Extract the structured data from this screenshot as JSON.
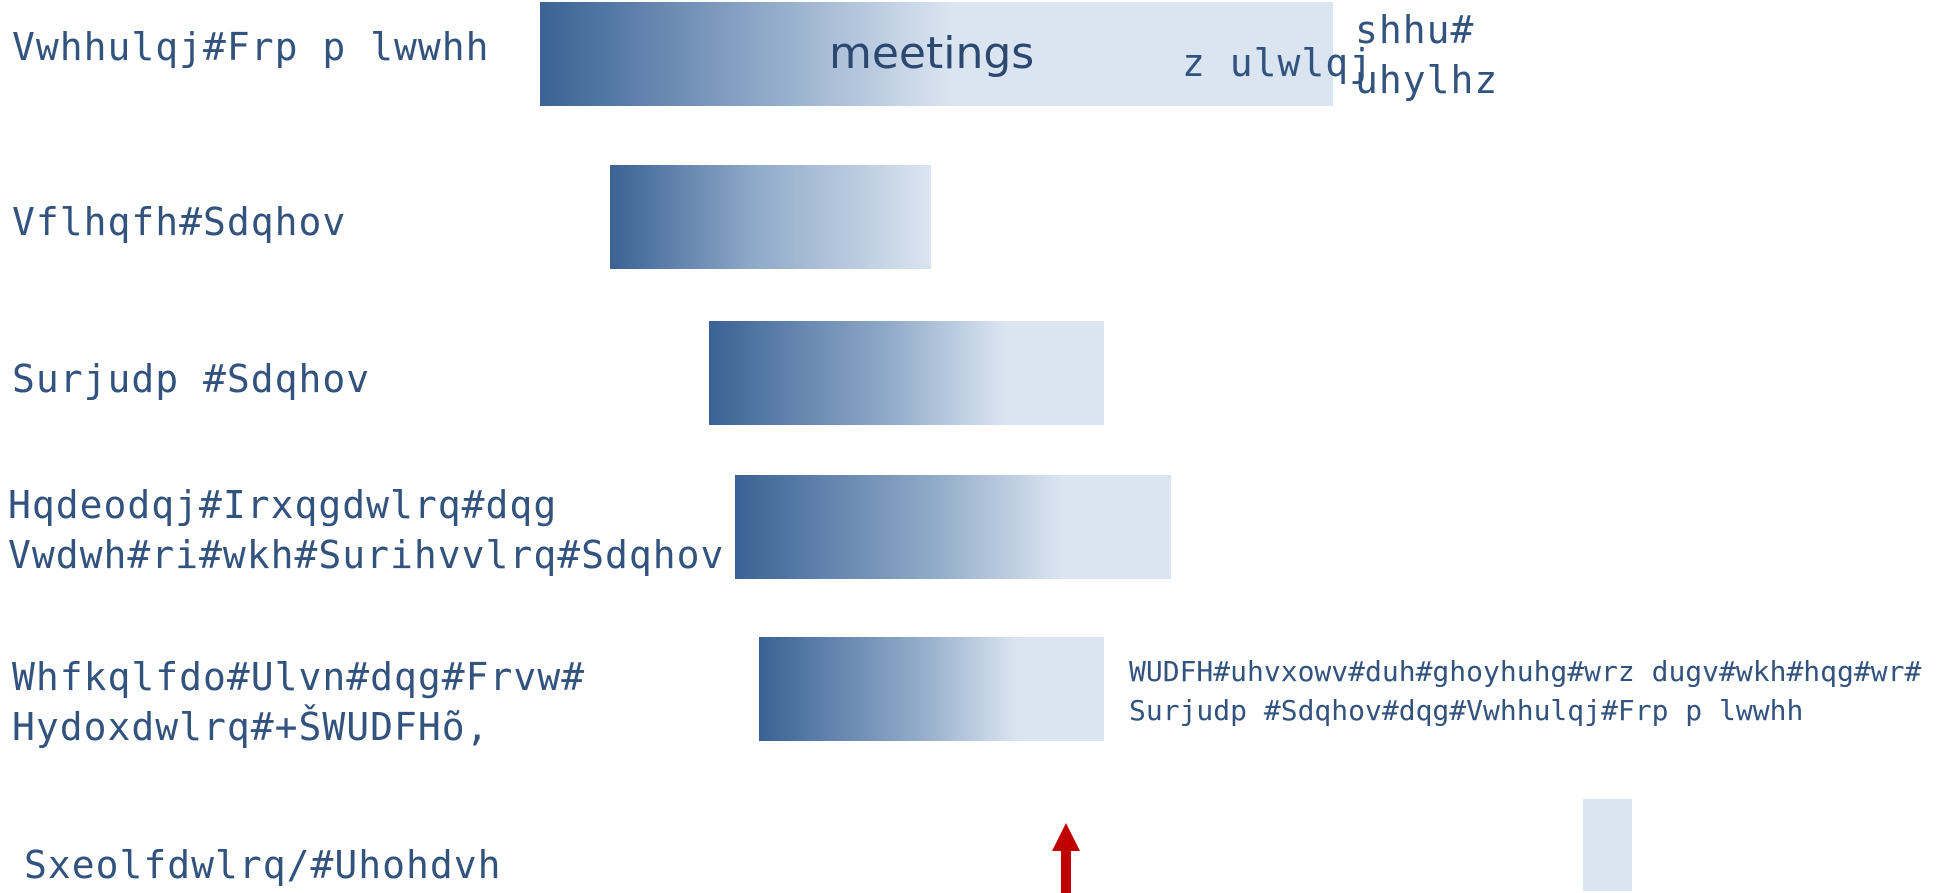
{
  "rows": {
    "steering_committee": "Vwhhulqj#Frp p lwwhh",
    "science_panels": "Vflhqfh#Sdqhov",
    "program_panels": "Surjudp #Sdqhov",
    "enabling_panels": "Hqdeodqj#Irxqgdwlrq#dqg\nVwdwh#ri#wkh#Surihvvlrq#Sdqhov",
    "trace": "Whfkqlfdo#Ulvn#dqg#Frvw#\nHydoxdwlrq#+ŠWUDFHõ,",
    "publication": "Sxeolfdwlrq/#Uhohdvh"
  },
  "bars": {
    "meetings_label": "meetings",
    "writing_label": "z ulwlqj",
    "peer_review_label": "shhu#\nuhylhz"
  },
  "notes": {
    "trace_note": "WUDFH#uhvxowv#duh#ghoyhuhg#wrz dugv#wkh#hqg#wr#\nSurjudp #Sdqhov#dqg#Vwhhulqj#Frp p lwwhh"
  },
  "colors": {
    "bar_dark": "#3a6294",
    "bar_light": "#dbe5f1",
    "text": "#33537f",
    "arrow": "#c00000"
  }
}
